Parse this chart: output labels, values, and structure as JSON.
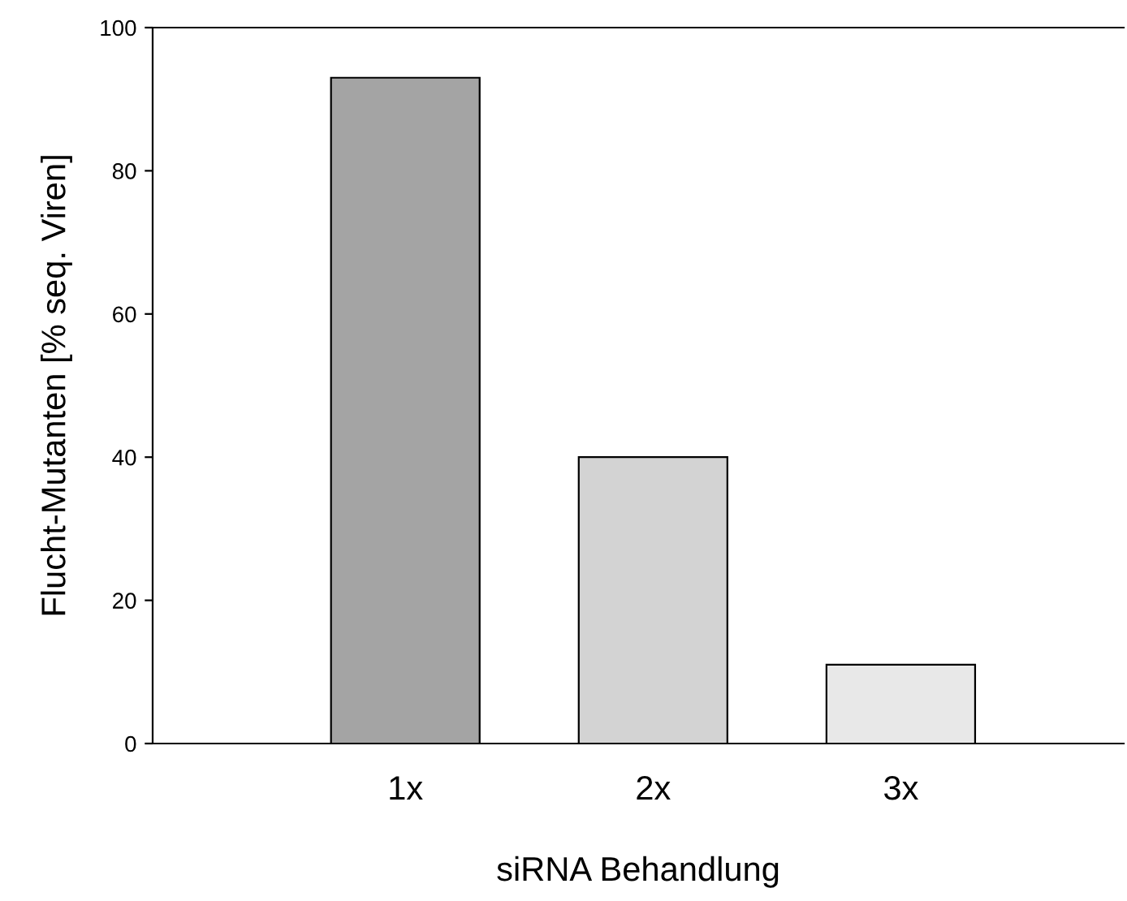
{
  "chart_data": {
    "type": "bar",
    "xlabel": "siRNA Behandlung",
    "ylabel": "Flucht-Mutanten [% seq. Viren]",
    "categories": [
      "1x",
      "2x",
      "3x"
    ],
    "values": [
      93,
      40,
      11
    ],
    "colors": [
      "#a4a4a4",
      "#d3d3d3",
      "#e8e8e8"
    ],
    "ylim": [
      0,
      100
    ],
    "yticks": [
      0,
      20,
      40,
      60,
      80,
      100
    ],
    "grid": false,
    "legend": false
  }
}
